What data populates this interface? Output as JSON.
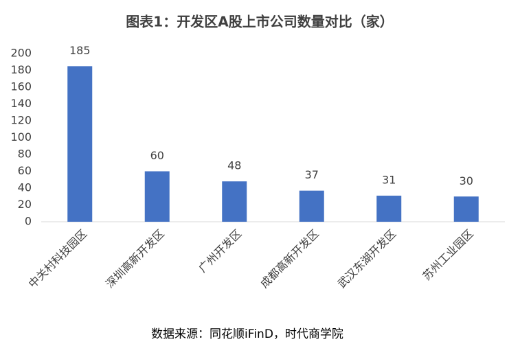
{
  "chart_data": {
    "type": "bar",
    "title": "图表1：开发区A股上市公司数量对比（家）",
    "categories": [
      "中关村科技园区",
      "深圳高新开发区",
      "广州开发区",
      "成都高新开发区",
      "武汉东湖开发区",
      "苏州工业园区"
    ],
    "values": [
      185,
      60,
      48,
      37,
      31,
      30
    ],
    "color": "#4472c4",
    "ylim": [
      0,
      200
    ],
    "yticks": [
      0,
      20,
      40,
      60,
      80,
      100,
      120,
      140,
      160,
      180,
      200
    ],
    "grid": false,
    "source": "数据来源：同花顺iFinD，时代商学院"
  }
}
